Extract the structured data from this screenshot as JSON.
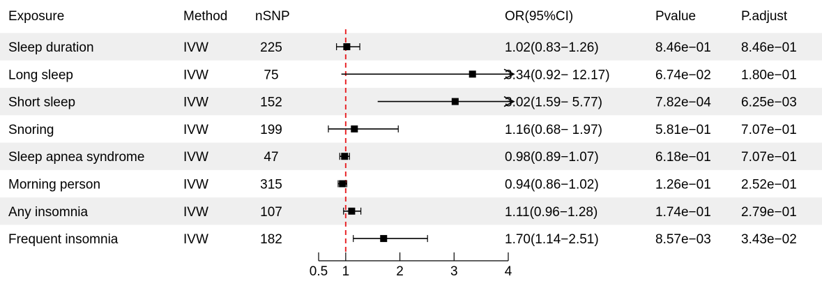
{
  "chart_data": {
    "type": "forest",
    "columns": {
      "exposure": "Exposure",
      "method": "Method",
      "nsnp": "nSNP",
      "or": "OR(95%CI)",
      "pvalue": "Pvalue",
      "padjust": "P.adjust"
    },
    "rows": [
      {
        "exposure": "Sleep duration",
        "method": "IVW",
        "nsnp": "225",
        "or_text": "1.02(0.83−1.26)",
        "pvalue": "8.46e−01",
        "padjust": "8.46e−01",
        "or": 1.02,
        "lower": 0.83,
        "upper": 1.26
      },
      {
        "exposure": "Long sleep",
        "method": "IVW",
        "nsnp": "75",
        "or_text": "3.34(0.92− 12.17)",
        "pvalue": "6.74e−02",
        "padjust": "1.80e−01",
        "or": 3.34,
        "lower": 0.92,
        "upper": 12.17
      },
      {
        "exposure": "Short sleep",
        "method": "IVW",
        "nsnp": "152",
        "or_text": "3.02(1.59− 5.77)",
        "pvalue": "7.82e−04",
        "padjust": "6.25e−03",
        "or": 3.02,
        "lower": 1.59,
        "upper": 5.77
      },
      {
        "exposure": "Snoring",
        "method": "IVW",
        "nsnp": "199",
        "or_text": "1.16(0.68− 1.97)",
        "pvalue": "5.81e−01",
        "padjust": "7.07e−01",
        "or": 1.16,
        "lower": 0.68,
        "upper": 1.97
      },
      {
        "exposure": "Sleep apnea syndrome",
        "method": "IVW",
        "nsnp": "47",
        "or_text": "0.98(0.89−1.07)",
        "pvalue": "6.18e−01",
        "padjust": "7.07e−01",
        "or": 0.98,
        "lower": 0.89,
        "upper": 1.07
      },
      {
        "exposure": "Morning person",
        "method": "IVW",
        "nsnp": "315",
        "or_text": "0.94(0.86−1.02)",
        "pvalue": "1.26e−01",
        "padjust": "2.52e−01",
        "or": 0.94,
        "lower": 0.86,
        "upper": 1.02
      },
      {
        "exposure": "Any insomnia",
        "method": "IVW",
        "nsnp": "107",
        "or_text": "1.11(0.96−1.28)",
        "pvalue": "1.74e−01",
        "padjust": "2.79e−01",
        "or": 1.11,
        "lower": 0.96,
        "upper": 1.28
      },
      {
        "exposure": "Frequent insomnia",
        "method": "IVW",
        "nsnp": "182",
        "or_text": "1.70(1.14−2.51)",
        "pvalue": "8.57e−03",
        "padjust": "3.43e−02",
        "or": 1.7,
        "lower": 1.14,
        "upper": 2.51
      }
    ],
    "x_ticks": [
      0.5,
      1,
      2,
      3,
      4
    ],
    "xlim": [
      0.5,
      4
    ],
    "reference_line": 1,
    "colors": {
      "reference_line": "#e8262a",
      "stripe": "#efefef",
      "marks": "#000000"
    }
  }
}
